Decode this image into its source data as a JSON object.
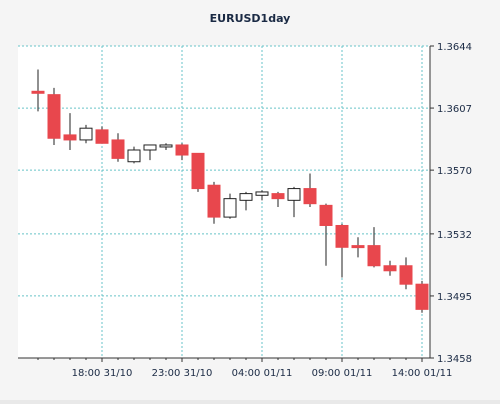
{
  "chart_data": {
    "type": "candlestick",
    "title": "EURUSD1day",
    "xlabel": "",
    "ylabel": "",
    "ylim": [
      1.3458,
      1.3644
    ],
    "yticks": [
      "1.3644",
      "1.3607",
      "1.3570",
      "1.3532",
      "1.3495",
      "1.3458"
    ],
    "xticks": [
      {
        "label": "18:00 31/10",
        "index": 4
      },
      {
        "label": "23:00 31/10",
        "index": 9
      },
      {
        "label": "04:00 01/11",
        "index": 14
      },
      {
        "label": "09:00 01/11",
        "index": 19
      },
      {
        "label": "14:00 01/11",
        "index": 24
      }
    ],
    "grid": true,
    "colors": {
      "down": "#e8474d",
      "up": "#ffffff",
      "outline": "#222222",
      "grid": "#67c3c8",
      "axis": "#333333",
      "plot_bg": "#ffffff",
      "chart_bg": "#f5f5f5",
      "tick_text": "#1a2a44"
    },
    "candles": [
      {
        "open": 1.3617,
        "high": 1.363,
        "low": 1.3605,
        "close": 1.3616
      },
      {
        "open": 1.3615,
        "high": 1.3619,
        "low": 1.3585,
        "close": 1.3589
      },
      {
        "open": 1.3591,
        "high": 1.3604,
        "low": 1.3582,
        "close": 1.3588
      },
      {
        "open": 1.3588,
        "high": 1.3597,
        "low": 1.3586,
        "close": 1.3595
      },
      {
        "open": 1.3594,
        "high": 1.3596,
        "low": 1.3586,
        "close": 1.3586
      },
      {
        "open": 1.3588,
        "high": 1.3592,
        "low": 1.3575,
        "close": 1.3577
      },
      {
        "open": 1.3575,
        "high": 1.3584,
        "low": 1.3574,
        "close": 1.3582
      },
      {
        "open": 1.3582,
        "high": 1.3585,
        "low": 1.3576,
        "close": 1.3585
      },
      {
        "open": 1.3585,
        "high": 1.3586,
        "low": 1.3582,
        "close": 1.3585
      },
      {
        "open": 1.3585,
        "high": 1.3586,
        "low": 1.3576,
        "close": 1.3579
      },
      {
        "open": 1.358,
        "high": 1.358,
        "low": 1.3557,
        "close": 1.3559
      },
      {
        "open": 1.3561,
        "high": 1.3563,
        "low": 1.3538,
        "close": 1.3542
      },
      {
        "open": 1.3542,
        "high": 1.3556,
        "low": 1.3541,
        "close": 1.3553
      },
      {
        "open": 1.3552,
        "high": 1.3557,
        "low": 1.3546,
        "close": 1.3556
      },
      {
        "open": 1.3555,
        "high": 1.3558,
        "low": 1.3552,
        "close": 1.3557
      },
      {
        "open": 1.3556,
        "high": 1.3557,
        "low": 1.3548,
        "close": 1.3553
      },
      {
        "open": 1.3552,
        "high": 1.356,
        "low": 1.3542,
        "close": 1.3559
      },
      {
        "open": 1.3559,
        "high": 1.3568,
        "low": 1.3548,
        "close": 1.355
      },
      {
        "open": 1.3549,
        "high": 1.355,
        "low": 1.3513,
        "close": 1.3537
      },
      {
        "open": 1.3537,
        "high": 1.3538,
        "low": 1.3506,
        "close": 1.3524
      },
      {
        "open": 1.3525,
        "high": 1.353,
        "low": 1.3518,
        "close": 1.3524
      },
      {
        "open": 1.3525,
        "high": 1.3536,
        "low": 1.3512,
        "close": 1.3513
      },
      {
        "open": 1.3513,
        "high": 1.3516,
        "low": 1.3507,
        "close": 1.351
      },
      {
        "open": 1.3513,
        "high": 1.3518,
        "low": 1.3499,
        "close": 1.3502
      },
      {
        "open": 1.3502,
        "high": 1.3504,
        "low": 1.3485,
        "close": 1.3487
      }
    ]
  }
}
